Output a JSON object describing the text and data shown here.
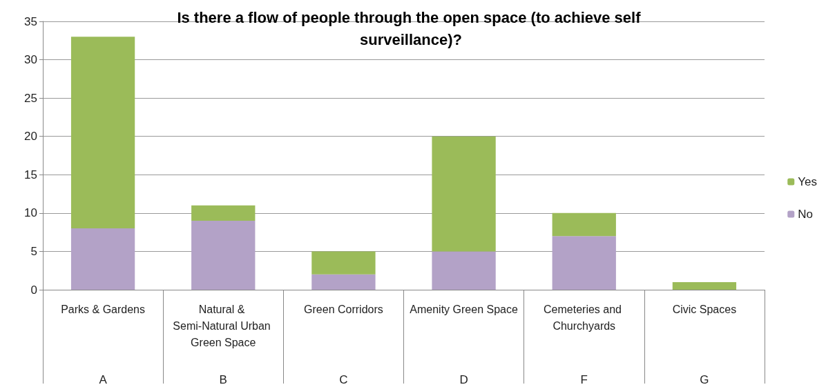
{
  "chart_data": {
    "type": "bar",
    "title": "Is there a flow of people through the open space (to achieve self surveillance)?",
    "categories": [
      "Parks & Gardens",
      "Natural & Semi-Natural Urban Green Space",
      "Green Corridors",
      "Amenity Green Space",
      "Cemeteries and Churchyards",
      "Civic Spaces"
    ],
    "series": [
      {
        "name": "No",
        "color": "#b3a2c7",
        "values": [
          8,
          9,
          2,
          5,
          7,
          0
        ]
      },
      {
        "name": "Yes",
        "color": "#9bbb59",
        "values": [
          25,
          2,
          3,
          15,
          3,
          1
        ]
      }
    ],
    "stacked": true,
    "ylim": [
      0,
      35
    ],
    "yticks": [
      0,
      5,
      10,
      15,
      20,
      25,
      30,
      35
    ],
    "grid": "y",
    "legend": "right",
    "annotations": [
      "A",
      "B",
      "C",
      "D",
      "F",
      "G"
    ]
  }
}
